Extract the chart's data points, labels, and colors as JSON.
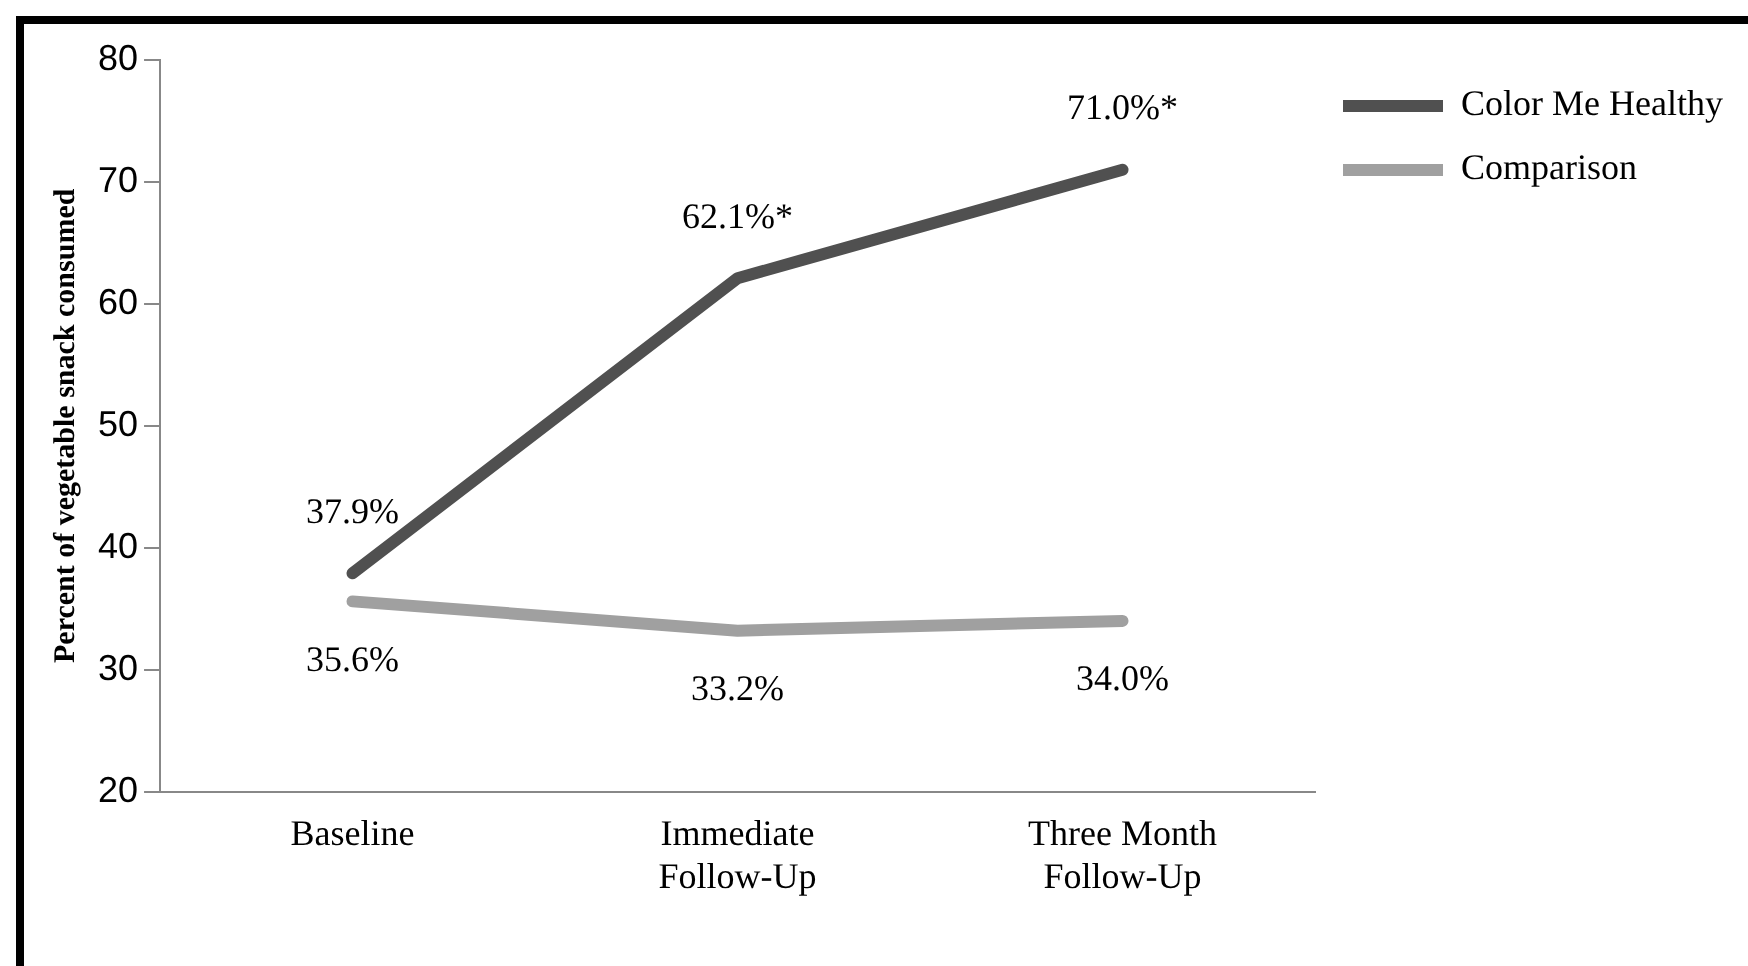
{
  "chart_data": {
    "type": "line",
    "ylabel": "Percent of vegetable snack consumed",
    "categories": [
      "Baseline",
      "Immediate Follow-Up",
      "Three Month Follow-Up"
    ],
    "series": [
      {
        "name": "Color Me Healthy",
        "color": "#505050",
        "values": [
          37.9,
          62.1,
          71.0
        ],
        "value_labels": [
          "37.9%",
          "62.1%*",
          "71.0%*"
        ]
      },
      {
        "name": "Comparison",
        "color": "#a0a0a0",
        "values": [
          35.6,
          33.2,
          34.0
        ],
        "value_labels": [
          "35.6%",
          "33.2%",
          "34.0%"
        ]
      }
    ],
    "ylim": [
      20,
      80
    ],
    "yticks": [
      20,
      30,
      40,
      50,
      60,
      70,
      80
    ],
    "grid": false,
    "legend": "top right",
    "marker": "none",
    "line_style": "solid"
  }
}
